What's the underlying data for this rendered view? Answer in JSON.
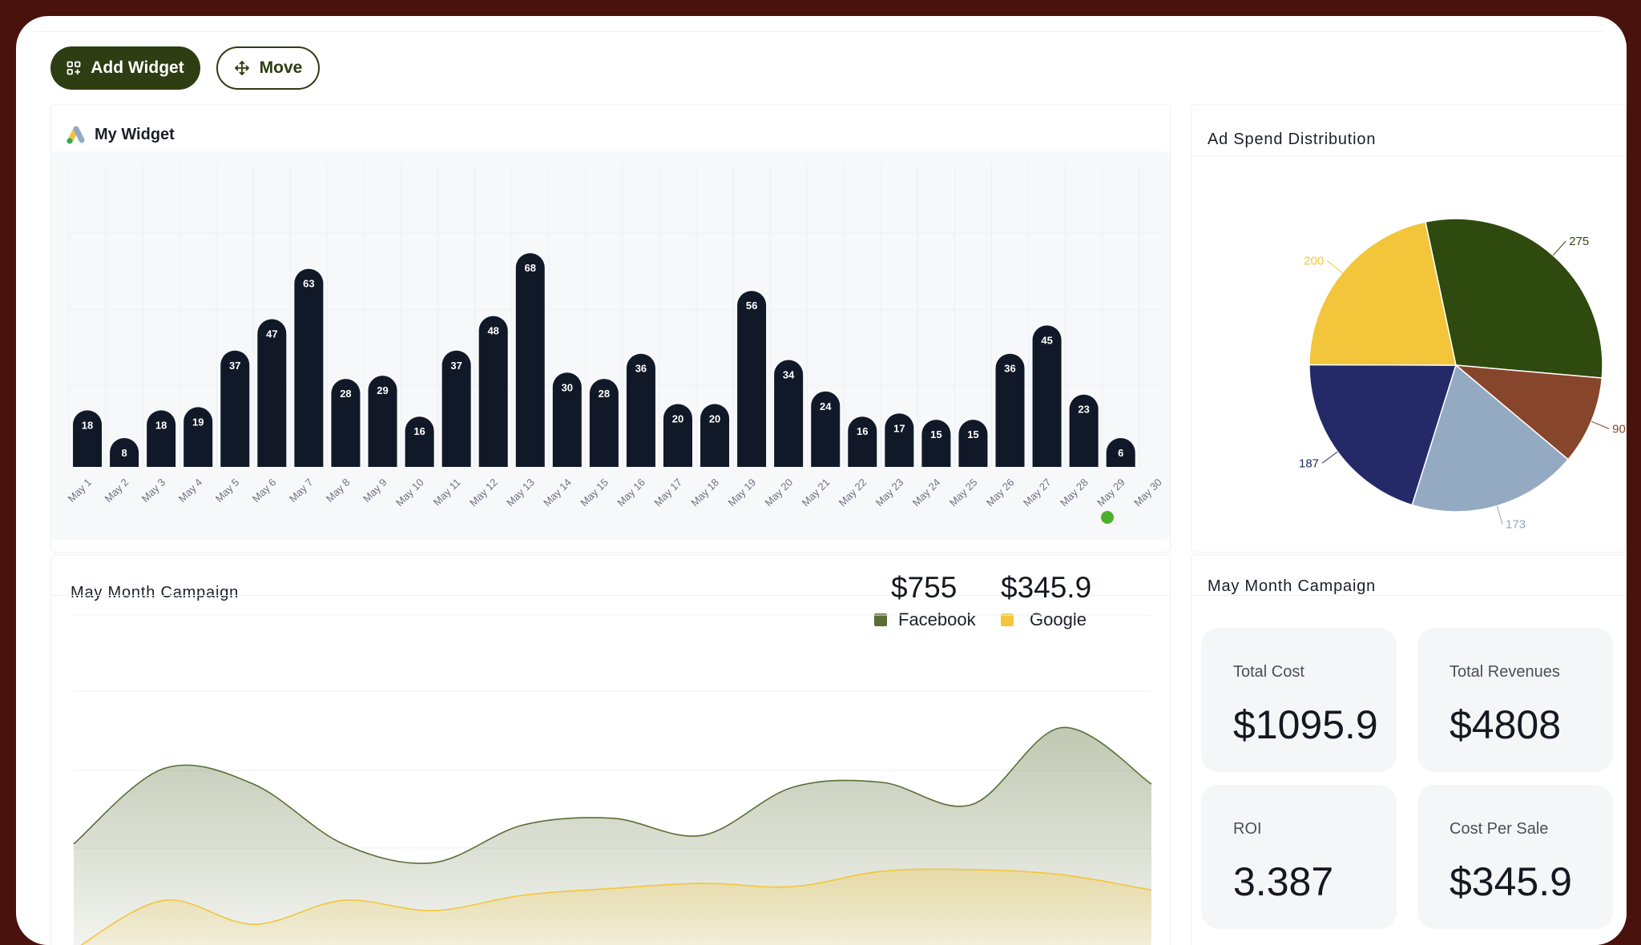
{
  "toolbar": {
    "add_widget_label": "Add Widget",
    "move_label": "Move"
  },
  "bar_widget": {
    "title": "My Widget",
    "chart_data": {
      "type": "bar",
      "categories": [
        "May 1",
        "May 2",
        "May 3",
        "May 4",
        "May 5",
        "May 6",
        "May 7",
        "May 8",
        "May 9",
        "May 10",
        "May 11",
        "May 12",
        "May 13",
        "May 14",
        "May 15",
        "May 16",
        "May 17",
        "May 18",
        "May 19",
        "May 20",
        "May 21",
        "May 22",
        "May 23",
        "May 24",
        "May 25",
        "May 26",
        "May 27",
        "May 28",
        "May 29",
        "May 30"
      ],
      "values": [
        18,
        8,
        18,
        19,
        37,
        47,
        63,
        28,
        29,
        16,
        37,
        48,
        68,
        30,
        28,
        36,
        20,
        20,
        56,
        34,
        24,
        16,
        17,
        15,
        15,
        36,
        45,
        23,
        6,
        0
      ],
      "bar_color": "#111827",
      "ylim": [
        0,
        80
      ],
      "grid": true
    }
  },
  "pie_widget": {
    "title": "Ad Spend Distribution",
    "chart_data": {
      "type": "pie",
      "values": [
        275,
        90,
        173,
        187,
        200
      ],
      "colors": [
        "#2e4a0e",
        "#87452b",
        "#94a9c2",
        "#232a67",
        "#f2c53a"
      ]
    }
  },
  "campaign_chart": {
    "title": "May Month Campaign",
    "legend": [
      {
        "name": "Facebook",
        "total": "$755",
        "color": "#5a6e35"
      },
      {
        "name": "Google",
        "total": "$345.9",
        "color": "#f2c53a"
      }
    ],
    "chart_data": {
      "type": "area",
      "series": [
        {
          "name": "Facebook",
          "values": [
            55,
            99,
            90,
            55,
            44,
            66,
            70,
            60,
            88,
            91,
            78,
            123,
            90
          ],
          "color": "#5a6e35"
        },
        {
          "name": "Google",
          "values": [
            -7,
            22,
            8,
            22,
            16,
            25,
            29,
            32,
            30,
            39,
            40,
            37,
            28
          ],
          "color": "#f2c53a"
        }
      ],
      "ylim": [
        -20,
        200
      ],
      "grid": true
    }
  },
  "kpis": {
    "title": "May Month Campaign",
    "items": [
      {
        "label": "Total Cost",
        "value": "$1095.9"
      },
      {
        "label": "Total Revenues",
        "value": "$4808"
      },
      {
        "label": "ROI",
        "value": "3.387"
      },
      {
        "label": "Cost Per Sale",
        "value": "$345.9"
      }
    ]
  }
}
